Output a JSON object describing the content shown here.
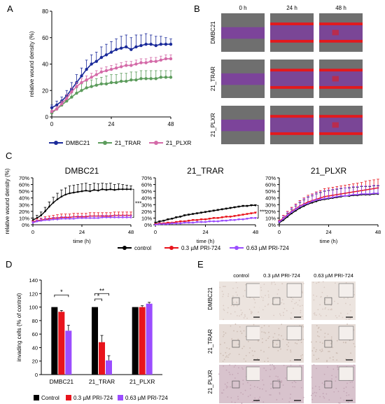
{
  "colors": {
    "dmbc": "#1a2a9a",
    "trar": "#5c9c5c",
    "plxr": "#d46aa8",
    "control": "#000000",
    "low": "#e8141c",
    "high": "#9b4dff",
    "wound_bg": "#6f6f6f",
    "wound_purple": "#7d3f9e",
    "wound_red": "#e31a1c"
  },
  "panel_labels": [
    "A",
    "B",
    "C",
    "D",
    "E"
  ],
  "chart_data": [
    {
      "id": "A",
      "type": "line",
      "xlabel": "",
      "ylabel": "relative wound density (%)",
      "xlim": [
        0,
        48
      ],
      "ylim": [
        0,
        80
      ],
      "xticks": [
        "0",
        "24",
        "48"
      ],
      "yticks": [
        "0",
        "20",
        "40",
        "60",
        "80"
      ],
      "x": [
        0,
        2,
        4,
        6,
        8,
        10,
        12,
        14,
        16,
        18,
        20,
        22,
        24,
        26,
        28,
        30,
        32,
        34,
        36,
        38,
        40,
        42,
        44,
        46,
        48
      ],
      "series": [
        {
          "name": "DMBC21",
          "values": [
            7,
            9,
            12,
            16,
            21,
            26,
            31,
            36,
            40,
            42,
            45,
            47,
            49,
            51,
            52,
            53,
            51,
            53,
            54,
            55,
            55,
            54,
            55,
            55,
            55
          ],
          "errors": [
            2,
            3,
            3,
            4,
            5,
            6,
            6,
            7,
            7,
            7,
            8,
            8,
            8,
            8,
            9,
            9,
            9,
            9,
            8,
            8,
            7,
            7,
            6,
            5,
            4
          ]
        },
        {
          "name": "21_TRAR",
          "values": [
            3,
            6,
            9,
            12,
            15,
            18,
            20,
            22,
            23,
            24,
            25,
            25,
            26,
            26,
            27,
            27,
            28,
            28,
            29,
            29,
            29,
            29,
            30,
            30,
            30
          ],
          "errors": [
            1,
            2,
            3,
            3,
            4,
            4,
            5,
            5,
            5,
            5,
            5,
            6,
            6,
            6,
            6,
            6,
            6,
            6,
            6,
            6,
            6,
            6,
            5,
            5,
            5
          ]
        },
        {
          "name": "21_PLXR",
          "values": [
            4,
            6,
            10,
            14,
            19,
            23,
            26,
            28,
            30,
            32,
            34,
            35,
            36,
            37,
            38,
            39,
            39,
            40,
            41,
            41,
            42,
            42,
            43,
            44,
            44
          ],
          "errors": [
            1,
            2,
            2,
            3,
            3,
            3,
            3,
            3,
            3,
            3,
            3,
            3,
            3,
            3,
            3,
            3,
            3,
            3,
            3,
            3,
            3,
            3,
            3,
            3,
            3
          ]
        }
      ]
    },
    {
      "id": "C1",
      "type": "line",
      "title": "DMBC21",
      "xlabel": "time (h)",
      "ylabel": "relative wound density (%)",
      "xlim": [
        0,
        48
      ],
      "ylim": [
        0,
        70
      ],
      "xticks": [
        "0",
        "24",
        "48"
      ],
      "yticks": [
        "0%",
        "10%",
        "20%",
        "30%",
        "40%",
        "50%",
        "60%",
        "70%"
      ],
      "annotation": "***",
      "x": [
        0,
        2,
        4,
        6,
        8,
        10,
        12,
        14,
        16,
        18,
        20,
        22,
        24,
        26,
        28,
        30,
        32,
        34,
        36,
        38,
        40,
        42,
        44,
        46,
        48
      ],
      "series": [
        {
          "name": "control",
          "values": [
            7,
            10,
            14,
            20,
            27,
            33,
            38,
            42,
            45,
            47,
            48,
            49,
            50,
            51,
            50,
            52,
            51,
            53,
            52,
            53,
            52,
            53,
            53,
            53,
            53
          ],
          "errors": [
            3,
            4,
            5,
            6,
            7,
            8,
            9,
            10,
            10,
            11,
            11,
            11,
            11,
            11,
            10,
            10,
            10,
            9,
            9,
            9,
            8,
            8,
            7,
            6,
            5
          ]
        },
        {
          "name": "0.3 µM PRI-724",
          "values": [
            4,
            6,
            7,
            8,
            9,
            10,
            10,
            11,
            11,
            11,
            12,
            12,
            12,
            12,
            13,
            13,
            13,
            13,
            13,
            13,
            14,
            14,
            14,
            14,
            14
          ],
          "errors": [
            2,
            3,
            3,
            4,
            4,
            4,
            5,
            5,
            5,
            5,
            5,
            5,
            5,
            5,
            5,
            5,
            5,
            5,
            5,
            5,
            5,
            5,
            5,
            5,
            5
          ]
        },
        {
          "name": "0.63 µM PRI-724",
          "values": [
            3,
            5,
            6,
            7,
            7,
            8,
            8,
            9,
            9,
            9,
            9,
            10,
            10,
            10,
            10,
            10,
            10,
            11,
            11,
            11,
            11,
            11,
            11,
            11,
            11
          ],
          "errors": [
            2,
            2,
            3,
            3,
            3,
            3,
            3,
            3,
            3,
            3,
            3,
            3,
            3,
            3,
            3,
            3,
            3,
            3,
            3,
            3,
            3,
            3,
            3,
            3,
            3
          ]
        }
      ]
    },
    {
      "id": "C2",
      "type": "line",
      "title": "21_TRAR",
      "xlabel": "time (h)",
      "ylabel": "",
      "xlim": [
        0,
        48
      ],
      "ylim": [
        0,
        70
      ],
      "xticks": [
        "0",
        "24",
        "48"
      ],
      "yticks": [
        "0%",
        "10%",
        "20%",
        "30%",
        "40%",
        "50%",
        "60%",
        "70%"
      ],
      "annotation": "***",
      "x": [
        0,
        2,
        4,
        6,
        8,
        10,
        12,
        14,
        16,
        18,
        20,
        22,
        24,
        26,
        28,
        30,
        32,
        34,
        36,
        38,
        40,
        42,
        44,
        46,
        48
      ],
      "series": [
        {
          "name": "control",
          "values": [
            3,
            5,
            6,
            8,
            9,
            11,
            12,
            14,
            15,
            16,
            17,
            18,
            19,
            20,
            21,
            22,
            23,
            24,
            25,
            26,
            27,
            28,
            28,
            29,
            29
          ],
          "errors": [
            1,
            1,
            1,
            1,
            1,
            1,
            1,
            1,
            1,
            1,
            1,
            1,
            1,
            1,
            1,
            1,
            1,
            1,
            1,
            1,
            1,
            1,
            1,
            1,
            1
          ]
        },
        {
          "name": "0.3 µM PRI-724",
          "values": [
            1,
            2,
            2,
            3,
            3,
            4,
            5,
            5,
            6,
            7,
            7,
            8,
            8,
            9,
            10,
            10,
            11,
            12,
            12,
            13,
            14,
            15,
            16,
            17,
            18
          ],
          "errors": [
            1,
            1,
            1,
            1,
            1,
            1,
            1,
            1,
            1,
            1,
            1,
            1,
            1,
            1,
            1,
            1,
            1,
            1,
            1,
            1,
            1,
            1,
            1,
            1,
            1
          ]
        },
        {
          "name": "0.63 µM PRI-724",
          "values": [
            0,
            1,
            1,
            1,
            2,
            2,
            2,
            3,
            3,
            3,
            4,
            4,
            4,
            5,
            5,
            5,
            6,
            6,
            7,
            7,
            8,
            8,
            9,
            10,
            10
          ],
          "errors": [
            1,
            1,
            1,
            1,
            1,
            1,
            1,
            1,
            1,
            1,
            1,
            1,
            1,
            1,
            1,
            1,
            1,
            1,
            1,
            1,
            1,
            1,
            1,
            1,
            1
          ]
        }
      ]
    },
    {
      "id": "C3",
      "type": "line",
      "title": "21_PLXR",
      "xlabel": "time (h)",
      "ylabel": "",
      "xlim": [
        0,
        48
      ],
      "ylim": [
        0,
        70
      ],
      "xticks": [
        "0",
        "24",
        "48"
      ],
      "yticks": [
        "0%",
        "10%",
        "20%",
        "30%",
        "40%",
        "50%",
        "60%",
        "70%"
      ],
      "x": [
        0,
        2,
        4,
        6,
        8,
        10,
        12,
        14,
        16,
        18,
        20,
        22,
        24,
        26,
        28,
        30,
        32,
        34,
        36,
        38,
        40,
        42,
        44,
        46,
        48
      ],
      "series": [
        {
          "name": "control",
          "values": [
            3,
            7,
            12,
            17,
            21,
            25,
            28,
            31,
            33,
            35,
            37,
            38,
            39,
            40,
            41,
            42,
            43,
            43,
            44,
            44,
            45,
            45,
            45,
            46,
            46
          ],
          "errors": [
            2,
            4,
            5,
            6,
            7,
            8,
            9,
            10,
            10,
            11,
            11,
            12,
            12,
            12,
            12,
            12,
            12,
            12,
            12,
            12,
            12,
            12,
            12,
            12,
            12
          ]
        },
        {
          "name": "0.3 µM PRI-724",
          "values": [
            5,
            10,
            15,
            20,
            24,
            28,
            31,
            34,
            36,
            38,
            40,
            42,
            43,
            44,
            45,
            46,
            47,
            48,
            49,
            50,
            51,
            52,
            53,
            54,
            55
          ],
          "errors": [
            2,
            4,
            5,
            6,
            7,
            8,
            9,
            10,
            10,
            11,
            11,
            12,
            12,
            12,
            12,
            12,
            12,
            12,
            12,
            12,
            12,
            13,
            13,
            13,
            13
          ]
        },
        {
          "name": "0.63 µM PRI-724",
          "values": [
            4,
            9,
            14,
            19,
            23,
            27,
            30,
            32,
            35,
            37,
            38,
            39,
            40,
            41,
            42,
            43,
            43,
            44,
            45,
            45,
            46,
            46,
            46,
            47,
            47
          ],
          "errors": [
            2,
            4,
            5,
            6,
            7,
            8,
            9,
            10,
            10,
            11,
            11,
            12,
            12,
            12,
            12,
            12,
            12,
            12,
            12,
            12,
            12,
            12,
            12,
            12,
            12
          ]
        }
      ]
    },
    {
      "id": "D",
      "type": "bar",
      "ylabel": "invading cells (% of control)",
      "ylim": [
        0,
        140
      ],
      "yticks": [
        "0",
        "20",
        "40",
        "60",
        "80",
        "100",
        "120",
        "140"
      ],
      "categories": [
        "DMBC21",
        "21_TRAR",
        "21_PLXR"
      ],
      "series": [
        {
          "name": "Control",
          "values": [
            100,
            100,
            100
          ],
          "errors": [
            0,
            0,
            0
          ]
        },
        {
          "name": "0.3 µM PRI-724",
          "values": [
            93,
            48,
            100
          ],
          "errors": [
            2,
            10,
            2
          ]
        },
        {
          "name": "0.63 µM PRI-724",
          "values": [
            65,
            21,
            105
          ],
          "errors": [
            8,
            7,
            2
          ]
        }
      ],
      "significance": [
        "*",
        "*",
        "**"
      ]
    }
  ],
  "legends": {
    "A": [
      "DMBC21",
      "21_TRAR",
      "21_PLXR"
    ],
    "C": [
      "control",
      "0.3 µM PRI-724",
      "0.63 µM PRI-724"
    ],
    "D": [
      "Control",
      "0.3 µM PRI-724",
      "0.63 µM PRI-724"
    ]
  },
  "panel_B": {
    "columns": [
      "0 h",
      "24 h",
      "48 h"
    ],
    "rows": [
      "DMBC21",
      "21_TRAR",
      "21_PLXR"
    ]
  },
  "panel_E": {
    "columns": [
      "control",
      "0.3 µM PRI-724",
      "0.63 µM PRI-724"
    ],
    "rows": [
      "DMBC21",
      "21_TRAR",
      "21_PLXR"
    ]
  }
}
